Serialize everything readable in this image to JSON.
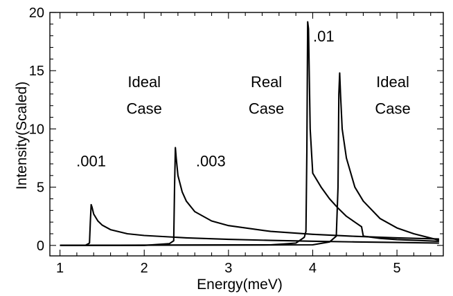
{
  "chart_data": {
    "type": "line",
    "title": "",
    "xlabel": "Energy(meV)",
    "ylabel": "Intensity(Scaled)",
    "xlim": [
      0.88,
      5.55
    ],
    "ylim": [
      -0.9,
      20
    ],
    "xticks": [
      1,
      2,
      3,
      4,
      5
    ],
    "yticks": [
      0,
      5,
      10,
      15,
      20
    ],
    "grid": false,
    "legend": "none",
    "annotations": [
      {
        "text": ".001",
        "x": 1.37,
        "y": 6.8
      },
      {
        "text": ".003",
        "x": 2.79,
        "y": 6.8
      },
      {
        "text": ".01",
        "x": 4.13,
        "y": 17.5
      },
      {
        "text": "Ideal",
        "x": 2.0,
        "y": 13.6
      },
      {
        "text": "Case",
        "x": 2.0,
        "y": 11.3
      },
      {
        "text": "Real",
        "x": 3.45,
        "y": 13.6
      },
      {
        "text": "Case",
        "x": 3.45,
        "y": 11.3
      },
      {
        "text": "Ideal",
        "x": 4.95,
        "y": 13.6
      },
      {
        "text": "Case",
        "x": 4.95,
        "y": 11.3
      }
    ],
    "series": [
      {
        "x": [
          1.0,
          1.3,
          1.35,
          1.36,
          1.37,
          1.38,
          1.4,
          1.45,
          1.5,
          1.6,
          1.8,
          2.0,
          2.5,
          3.0,
          3.5,
          4.0,
          4.5,
          5.0,
          5.5
        ],
        "y": [
          0.0,
          0.0,
          0.2,
          2.0,
          3.5,
          3.3,
          2.7,
          2.1,
          1.75,
          1.35,
          1.0,
          0.85,
          0.65,
          0.52,
          0.43,
          0.36,
          0.3,
          0.25,
          0.2
        ]
      },
      {
        "x": [
          1.0,
          2.0,
          2.3,
          2.35,
          2.36,
          2.37,
          2.38,
          2.4,
          2.45,
          2.5,
          2.6,
          2.8,
          3.0,
          3.5,
          4.0,
          4.5,
          5.0,
          5.5
        ],
        "y": [
          0.0,
          0.0,
          0.15,
          0.4,
          5.0,
          8.4,
          7.5,
          6.0,
          4.6,
          3.8,
          2.9,
          2.1,
          1.7,
          1.2,
          0.95,
          0.78,
          0.65,
          0.55
        ]
      },
      {
        "x": [
          1.0,
          3.5,
          3.8,
          3.9,
          3.92,
          3.93,
          3.94,
          3.95,
          3.97,
          4.0,
          4.1,
          4.2,
          4.3,
          4.4,
          4.5,
          4.58,
          4.6,
          4.8,
          5.0,
          5.5
        ],
        "y": [
          0.0,
          0.05,
          0.2,
          0.7,
          1.2,
          8.0,
          19.2,
          18.6,
          10.0,
          6.2,
          5.0,
          4.0,
          3.2,
          2.5,
          2.0,
          1.6,
          0.8,
          0.6,
          0.5,
          0.35
        ]
      },
      {
        "x": [
          1.0,
          4.0,
          4.2,
          4.28,
          4.3,
          4.31,
          4.32,
          4.33,
          4.35,
          4.4,
          4.5,
          4.6,
          4.8,
          5.0,
          5.2,
          5.5
        ],
        "y": [
          0.0,
          0.05,
          0.3,
          0.8,
          5.0,
          13.0,
          14.8,
          13.0,
          10.0,
          7.5,
          5.0,
          3.8,
          2.3,
          1.5,
          1.0,
          0.45
        ]
      }
    ]
  }
}
